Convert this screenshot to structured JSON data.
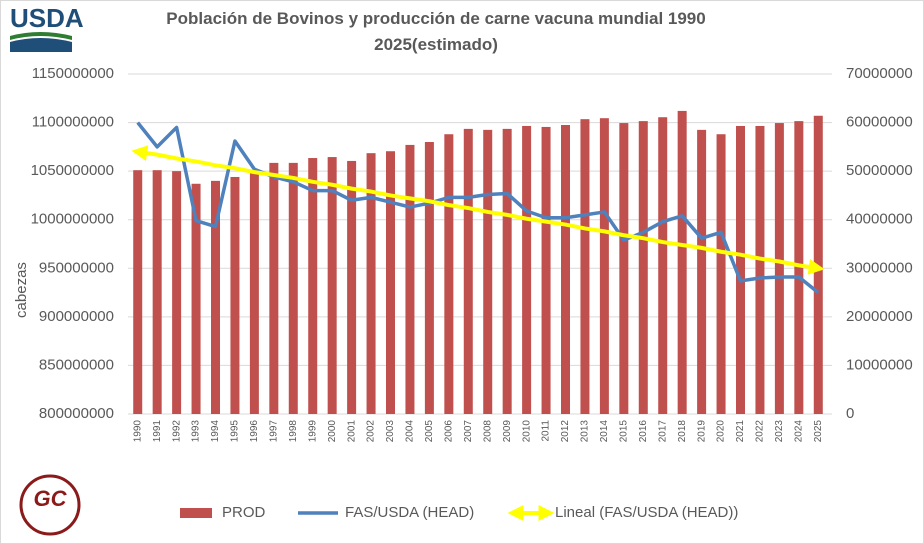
{
  "branding": {
    "top_left": "USDA",
    "bottom_left": "GC"
  },
  "chart_data": {
    "type": "combo",
    "title": "Población de Bovinos y producción de carne vacuna mundial 1990 2025(estimado)",
    "y_label": "cabezas",
    "categories": [
      "1990",
      "1991",
      "1992",
      "1993",
      "1994",
      "1995",
      "1996",
      "1997",
      "1998",
      "1999",
      "2000",
      "2001",
      "2002",
      "2003",
      "2004",
      "2005",
      "2006",
      "2007",
      "2008",
      "2009",
      "2010",
      "2011",
      "2012",
      "2013",
      "2014",
      "2015",
      "2016",
      "2017",
      "2018",
      "2019",
      "2020",
      "2021",
      "2022",
      "2023",
      "2024",
      "2025"
    ],
    "ylim": [
      800000000,
      1150000000
    ],
    "yticks": [
      800000000,
      850000000,
      900000000,
      950000000,
      1000000000,
      1050000000,
      1100000000,
      1150000000
    ],
    "y2lim": [
      0,
      70000000
    ],
    "y2ticks": [
      0,
      10000000,
      20000000,
      30000000,
      40000000,
      50000000,
      60000000,
      70000000
    ],
    "grid": true,
    "legend": "bottom",
    "series": [
      {
        "name": "PROD",
        "type": "bar",
        "axis": "y2",
        "color": "#c0504d",
        "values": [
          50200000,
          50200000,
          50000000,
          47400000,
          48000000,
          48800000,
          50200000,
          51700000,
          51700000,
          52700000,
          52900000,
          52100000,
          53700000,
          54100000,
          55400000,
          56000000,
          57600000,
          58700000,
          58500000,
          58700000,
          59300000,
          59100000,
          59500000,
          60700000,
          60900000,
          59900000,
          60300000,
          61100000,
          62400000,
          58500000,
          57600000,
          59300000,
          59300000,
          59900000,
          60300000,
          61400000
        ]
      },
      {
        "name": "FAS/USDA (HEAD)",
        "type": "line",
        "color": "#4f81bd",
        "values": [
          1100000000,
          1075000000,
          1095000000,
          999000000,
          993000000,
          1081000000,
          1052000000,
          1044000000,
          1039000000,
          1030000000,
          1030000000,
          1020000000,
          1023000000,
          1018000000,
          1013000000,
          1017000000,
          1023000000,
          1023000000,
          1026000000,
          1027000000,
          1009000000,
          1002000000,
          1002000000,
          1005000000,
          1008000000,
          979000000,
          987000000,
          998000000,
          1004000000,
          981000000,
          987000000,
          937000000,
          940000000,
          941000000,
          941000000,
          925000000
        ]
      },
      {
        "name": "Lineal (FAS/USDA (HEAD))",
        "type": "line",
        "arrows": true,
        "color": "#ffff00",
        "values": [
          1070000000,
          1067000000,
          1063000000,
          1060000000,
          1056000000,
          1053000000,
          1049000000,
          1046000000,
          1043000000,
          1039000000,
          1036000000,
          1032000000,
          1029000000,
          1025000000,
          1022000000,
          1019000000,
          1015000000,
          1012000000,
          1008000000,
          1005000000,
          1001000000,
          998000000,
          995000000,
          991000000,
          988000000,
          984000000,
          981000000,
          977000000,
          974000000,
          971000000,
          967000000,
          964000000,
          960000000,
          957000000,
          953000000,
          950000000
        ]
      }
    ]
  }
}
